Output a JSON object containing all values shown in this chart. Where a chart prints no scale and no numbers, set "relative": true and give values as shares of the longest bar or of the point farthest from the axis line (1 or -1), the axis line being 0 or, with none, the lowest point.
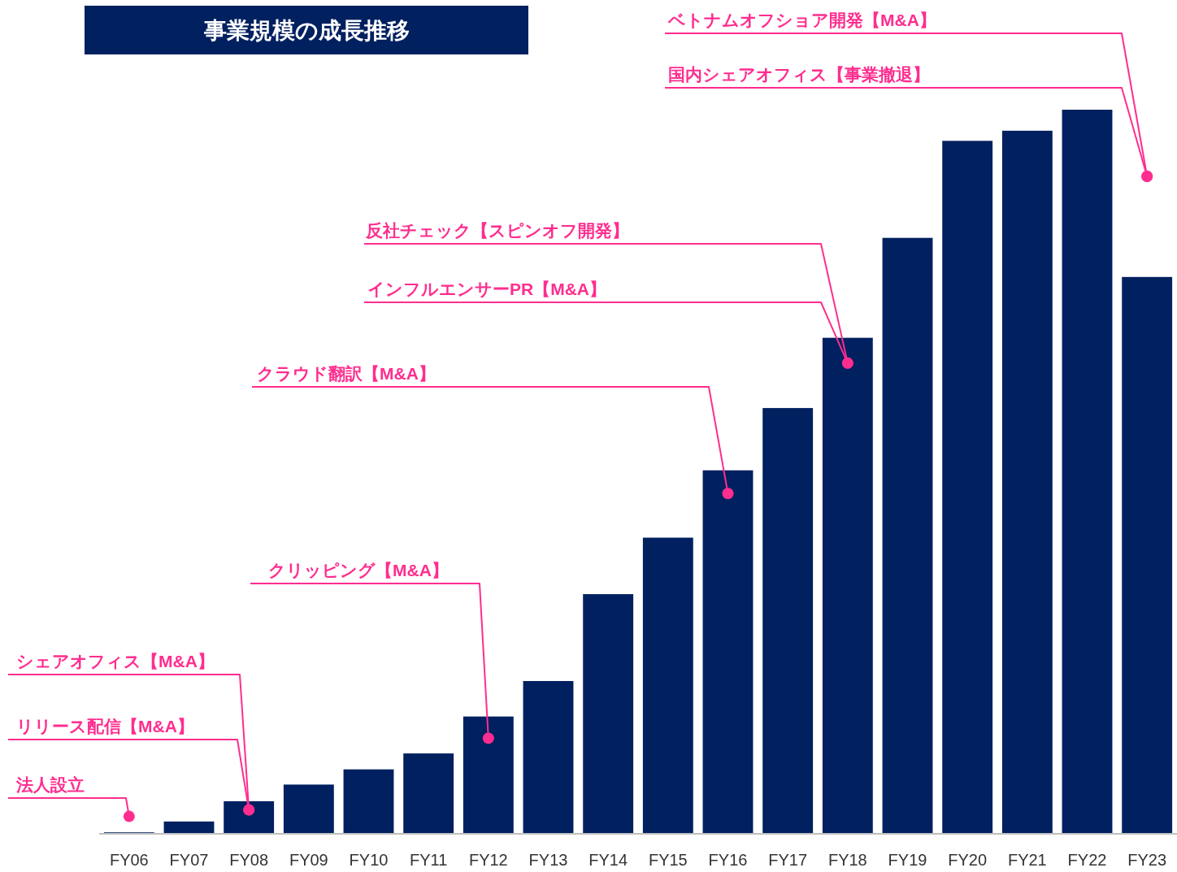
{
  "chart_data": {
    "type": "bar",
    "title": "事業規模の成長推移",
    "relative": true,
    "color": "#002060",
    "categories": [
      "FY06",
      "FY07",
      "FY08",
      "FY09",
      "FY10",
      "FY11",
      "FY12",
      "FY13",
      "FY14",
      "FY15",
      "FY16",
      "FY17",
      "FY18",
      "FY19",
      "FY20",
      "FY21",
      "FY22",
      "FY23"
    ],
    "values": [
      0.002,
      0.017,
      0.045,
      0.068,
      0.089,
      0.111,
      0.162,
      0.211,
      0.331,
      0.409,
      0.502,
      0.588,
      0.685,
      0.823,
      0.957,
      0.971,
      1,
      0.769
    ],
    "annotations": [
      {
        "text": "法人設立",
        "x": "FY06",
        "y": 0.024
      },
      {
        "text": "リリース配信【M&A】",
        "x": "FY08",
        "y": 0.033
      },
      "シェアオフィス【M&A】",
      {
        "text": "クリッピング【M&A】",
        "x": "FY12",
        "y": 0.132
      },
      {
        "text": "クラウド翻訳【M&A】",
        "x": "FY16",
        "y": 0.47
      },
      {
        "text": "反社チェック【スピンオフ開発】",
        "x": "FY18",
        "y": 0.65
      },
      "インフルエンサーPR【M&A】",
      {
        "text": "ベトナムオフショア開発【M&A】",
        "x": "FY23",
        "y": 0.908
      },
      "国内シェアオフィス【事業撤退】"
    ]
  }
}
